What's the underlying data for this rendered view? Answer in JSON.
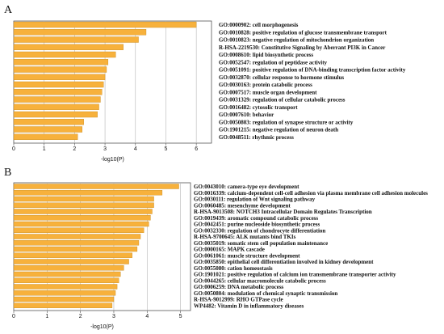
{
  "chart_data": [
    {
      "type": "bar",
      "orientation": "horizontal",
      "panel": "A",
      "xlabel": "-log10(P)",
      "xlim": [
        0,
        6.5
      ],
      "xticks": [
        0,
        1,
        2,
        3,
        4,
        5,
        6
      ],
      "grid": "vertical",
      "bar_color": "#f7b13c",
      "categories": [
        "GO:0000902: cell morphogenesis",
        "GO:0010828: positive regulation of glucose transmembrane transport",
        "GO:0010823: negative regulation of mitochondrion organization",
        "R-HSA-2219530: Constitutive Signaling by Aberrant PI3K in Cancer",
        "GO:0008610: lipid biosynthetic process",
        "GO:0052547: regulation of peptidase activity",
        "GO:0051091: positive regulation of DNA-binding transcription factor activity",
        "GO:0032870: cellular response to hormone stimulus",
        "GO:0030163: protein catabolic process",
        "GO:0007517: muscle organ development",
        "GO:0031329: regulation of cellular catabolic process",
        "GO:0016482: cytosolic transport",
        "GO:0007610: behavior",
        "GO:0050803: regulation of synapse structure or activity",
        "GO:1901215: negative regulation of neuron death",
        "GO:0048511: rhythmic process"
      ],
      "values": [
        6.0,
        4.35,
        4.1,
        3.6,
        3.35,
        3.1,
        3.05,
        3.0,
        2.95,
        2.9,
        2.85,
        2.8,
        2.75,
        2.3,
        2.25,
        2.1
      ]
    },
    {
      "type": "bar",
      "orientation": "horizontal",
      "panel": "B",
      "xlabel": "-log10(P)",
      "xlim": [
        0,
        5.3
      ],
      "xticks": [
        0,
        1,
        2,
        3,
        4,
        5
      ],
      "grid": "vertical",
      "bar_color": "#f7b13c",
      "categories": [
        "GO:0043010: camera-type eye development",
        "GO:0016339: calcium-dependent cell-cell adhesion via plasma membrane cell adhesion molecules",
        "GO:0030111: regulation of Wnt signaling pathway",
        "GO:0060485: mesenchyme development",
        "R-HSA-9013508: NOTCH3 Intracellular Domain Regulates Transcription",
        "GO:0019439: aromatic compound catabolic process",
        "GO:0042451: purine nucleoside biosynthetic process",
        "GO:0032330: regulation of chondrocyte differentiation",
        "R-HSA-9700645: ALK mutants bind TKIs",
        "GO:0035019: somatic stem cell population maintenance",
        "GO:0000165: MAPK cascade",
        "GO:0061061: muscle structure development",
        "GO:0035850: epithelial cell differentiation involved in kidney development",
        "GO:0055080: cation homeostasis",
        "GO:1901021: positive regulation of calcium ion transmembrane transporter activity",
        "GO:0044265: cellular macromolecule catabolic process",
        "GO:0006259: DNA metabolic process",
        "GO:0050804: modulation of chemical synaptic transmission",
        "R-HSA-9012999: RHO GTPase cycle",
        "WP4482: Vitamin D in inflammatory diseases"
      ],
      "values": [
        4.95,
        4.45,
        4.2,
        4.2,
        4.15,
        4.1,
        4.05,
        3.9,
        3.8,
        3.75,
        3.7,
        3.55,
        3.45,
        3.3,
        3.2,
        3.15,
        3.1,
        3.05,
        3.0,
        2.95
      ]
    }
  ]
}
